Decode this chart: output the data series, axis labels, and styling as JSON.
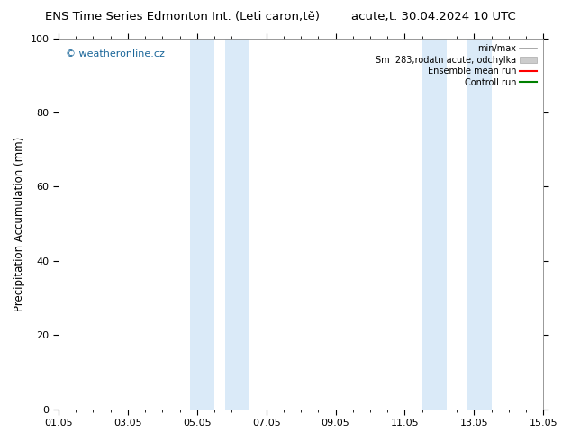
{
  "title_left": "ENS Time Series Edmonton Int. (Leti caron;tě)",
  "title_right": "acute;t. 30.04.2024 10 UTC",
  "ylabel": "Precipitation Accumulation (mm)",
  "ylim": [
    0,
    100
  ],
  "yticks": [
    0,
    20,
    40,
    60,
    80,
    100
  ],
  "x_start": 0,
  "x_end": 14,
  "xtick_labels": [
    "01.05",
    "03.05",
    "05.05",
    "07.05",
    "09.05",
    "11.05",
    "13.05",
    "15.05"
  ],
  "xtick_positions": [
    0,
    2,
    4,
    6,
    8,
    10,
    12,
    14
  ],
  "shaded_bands": [
    [
      3.8,
      4.5
    ],
    [
      4.8,
      5.5
    ],
    [
      10.5,
      11.2
    ],
    [
      11.8,
      12.5
    ]
  ],
  "shade_color": "#daeaf8",
  "watermark": "© weatheronline.cz",
  "watermark_color": "#1a6699",
  "legend_entries": [
    {
      "label": "min/max",
      "color": "#999999",
      "lw": 1.2,
      "type": "line"
    },
    {
      "label": "Sm  283;rodatn acute; odchylka",
      "color": "#cccccc",
      "lw": 6,
      "type": "patch"
    },
    {
      "label": "Ensemble mean run",
      "color": "red",
      "lw": 1.5,
      "type": "line"
    },
    {
      "label": "Controll run",
      "color": "green",
      "lw": 1.5,
      "type": "line"
    }
  ],
  "bg_color": "#ffffff",
  "plot_bg_color": "#ffffff",
  "title_fontsize": 9.5,
  "tick_fontsize": 8,
  "ylabel_fontsize": 8.5
}
